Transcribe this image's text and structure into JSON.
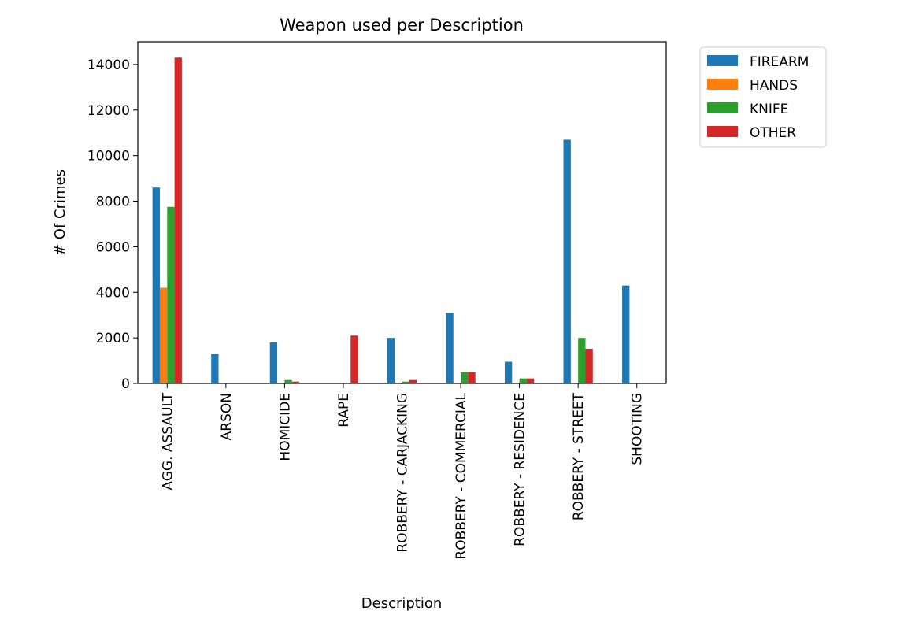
{
  "chart_data": {
    "type": "bar",
    "title": "Weapon used per Description",
    "xlabel": "Description",
    "ylabel": "# Of Crimes",
    "ylim": [
      0,
      15000
    ],
    "yticks": [
      0,
      2000,
      4000,
      6000,
      8000,
      10000,
      12000,
      14000
    ],
    "grid": false,
    "legend_position": "outside-top-right",
    "categories": [
      "AGG. ASSAULT",
      "ARSON",
      "HOMICIDE",
      "RAPE",
      "ROBBERY - CARJACKING",
      "ROBBERY - COMMERCIAL",
      "ROBBERY - RESIDENCE",
      "ROBBERY - STREET",
      "SHOOTING"
    ],
    "series": [
      {
        "name": "FIREARM",
        "color": "#1f77b4",
        "values": [
          8600,
          1300,
          1800,
          0,
          2000,
          3100,
          950,
          10700,
          4300
        ]
      },
      {
        "name": "HANDS",
        "color": "#ff7f0e",
        "values": [
          4200,
          0,
          0,
          0,
          0,
          0,
          0,
          0,
          0
        ]
      },
      {
        "name": "KNIFE",
        "color": "#2ca02c",
        "values": [
          7750,
          0,
          150,
          0,
          80,
          500,
          220,
          2000,
          0
        ]
      },
      {
        "name": "OTHER",
        "color": "#d62728",
        "values": [
          14300,
          0,
          80,
          2100,
          150,
          500,
          220,
          1520,
          0
        ]
      }
    ]
  }
}
